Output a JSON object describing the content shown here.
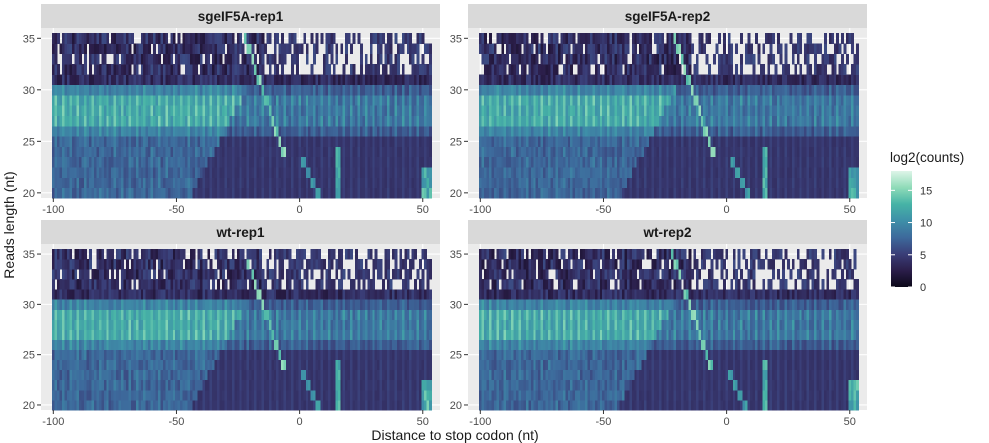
{
  "chart_data": {
    "type": "heatmap",
    "xlabel": "Distance to stop codon (nt)",
    "ylabel": "Reads length (nt)",
    "xlim": [
      -105,
      57
    ],
    "ylim": [
      19.5,
      36
    ],
    "x_ticks": [
      -100,
      -50,
      0,
      50
    ],
    "x_tick_labels": [
      "-100",
      "-50",
      "0",
      "50"
    ],
    "y_ticks": [
      20,
      25,
      30,
      35
    ],
    "y_tick_labels": [
      "20",
      "25",
      "30",
      "35"
    ],
    "x_range": [
      -100,
      53
    ],
    "y_range": [
      20,
      35
    ],
    "grid": true,
    "legend": {
      "title": "log2(counts)",
      "position": "right",
      "ticks": [
        0,
        5,
        10,
        15
      ],
      "tick_labels": [
        "0",
        "5",
        "10",
        "15"
      ],
      "range": [
        0,
        18
      ],
      "colors": [
        "#0b0818",
        "#2b1e4a",
        "#3a3e78",
        "#3d6a9c",
        "#3e8fa8",
        "#46b3a6",
        "#8fdbb8",
        "#def5e8"
      ]
    },
    "panels": [
      {
        "title": "sgeIF5A-rep1",
        "ridge_x": -15,
        "peak_bands": [
          27,
          28,
          29
        ]
      },
      {
        "title": "sgeIF5A-rep2",
        "ridge_x": -14,
        "peak_bands": [
          27,
          28,
          29
        ]
      },
      {
        "title": "wt-rep1",
        "ridge_x": -15,
        "peak_bands": [
          27,
          28,
          29
        ]
      },
      {
        "title": "wt-rep2",
        "ridge_x": -15,
        "peak_bands": [
          27,
          28,
          29
        ]
      }
    ]
  }
}
